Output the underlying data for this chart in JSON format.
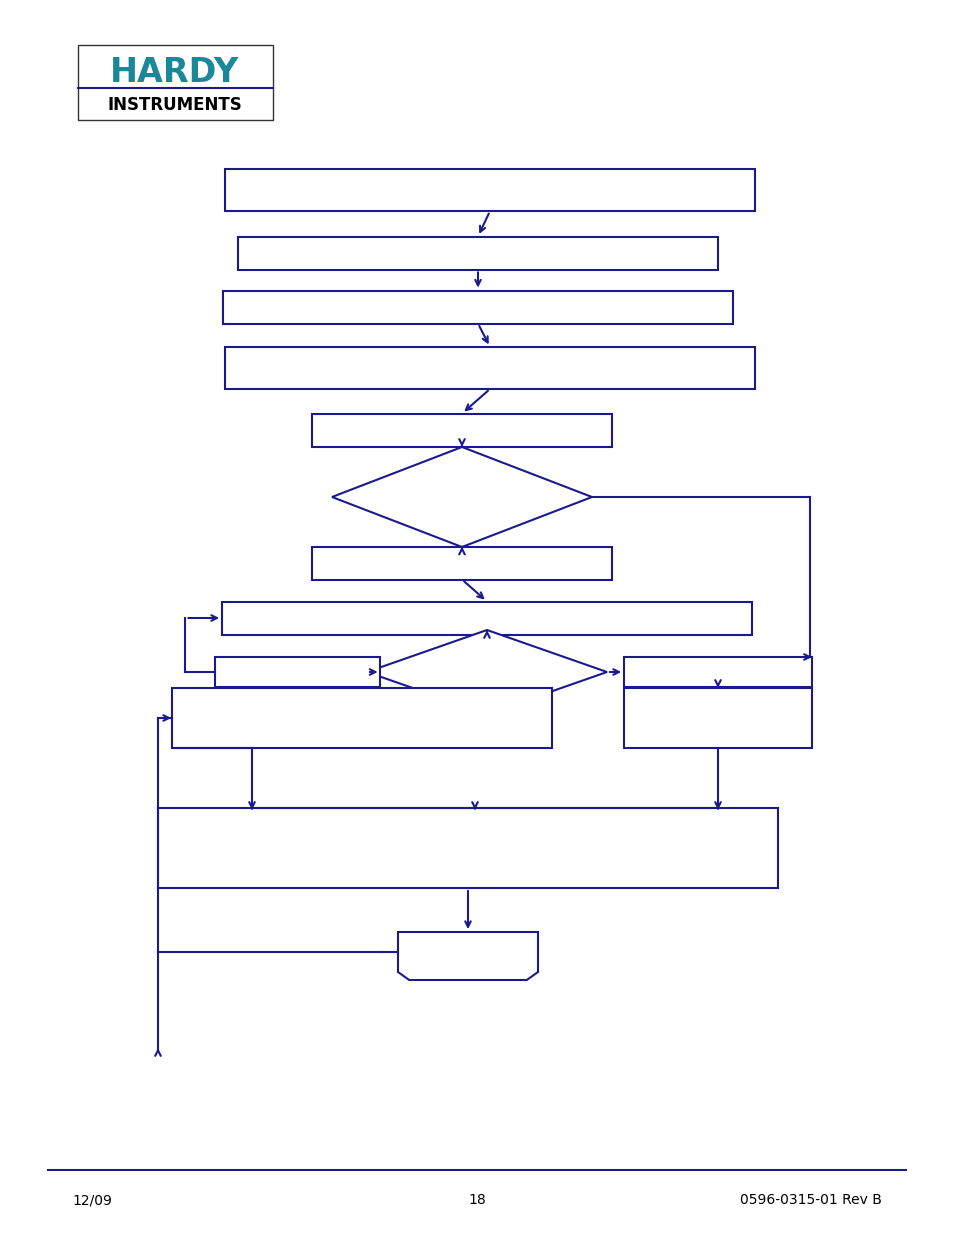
{
  "bg": "#ffffff",
  "fc": "#1a1a8c",
  "lw": 1.5,
  "footer_left": "12/09",
  "footer_center": "18",
  "footer_right": "0596-0315-01 Rev B",
  "logo_hardy_color": "#1a8aaa",
  "logo_instr_color": "#000000"
}
